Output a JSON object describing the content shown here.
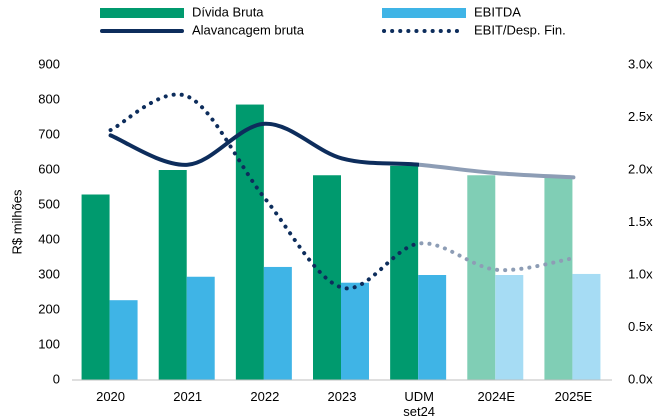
{
  "chart_data": {
    "type": "bar-line",
    "y_label": "R$ milhões",
    "categories": [
      "2020",
      "2021",
      "2022",
      "2023",
      "UDM set24",
      "2024E",
      "2025E"
    ],
    "ylim": [
      0,
      900
    ],
    "yticks": [
      0,
      100,
      200,
      300,
      400,
      500,
      600,
      700,
      800,
      900
    ],
    "y2lim": [
      0,
      3
    ],
    "y2ticks": [
      {
        "value": 0,
        "label": "0.0x"
      },
      {
        "value": 0.5,
        "label": "0.5x"
      },
      {
        "value": 1,
        "label": "1.0x"
      },
      {
        "value": 1.5,
        "label": "1.5x"
      },
      {
        "value": 2,
        "label": "2.0x"
      },
      {
        "value": 2.5,
        "label": "2.5x"
      },
      {
        "value": 3,
        "label": "3.0x"
      }
    ],
    "series": [
      {
        "name": "Dívida Bruta",
        "kind": "bar",
        "values": [
          530,
          600,
          787,
          585,
          612,
          585,
          578
        ],
        "colors": [
          "#009a6e",
          "#009a6e",
          "#009a6e",
          "#009a6e",
          "#009a6e",
          "#80ceb5",
          "#80ceb5"
        ]
      },
      {
        "name": "EBITDA",
        "kind": "bar",
        "values": [
          228,
          295,
          323,
          278,
          300,
          300,
          303
        ],
        "colors": [
          "#3fb4e6",
          "#3fb4e6",
          "#3fb4e6",
          "#3fb4e6",
          "#3fb4e6",
          "#a6dcf4",
          "#a6dcf4"
        ]
      },
      {
        "name": "Alavancagem bruta",
        "kind": "line",
        "axis": "y2",
        "values": [
          2.33,
          2.05,
          2.44,
          2.11,
          2.05,
          1.97,
          1.93
        ],
        "colors": [
          "#0d2d5c",
          "#0d2d5c",
          "#0d2d5c",
          "#0d2d5c",
          "#0d2d5c",
          "#8d9db5",
          "#8d9db5"
        ]
      },
      {
        "name": "EBIT/Desp. Fin.",
        "kind": "dotted",
        "axis": "y2",
        "values": [
          2.38,
          2.7,
          1.73,
          0.88,
          1.3,
          1.05,
          1.16
        ],
        "colors": [
          "#0d2d5c",
          "#0d2d5c",
          "#0d2d5c",
          "#0d2d5c",
          "#0d2d5c",
          "#8d9db5",
          "#8d9db5"
        ]
      }
    ]
  }
}
